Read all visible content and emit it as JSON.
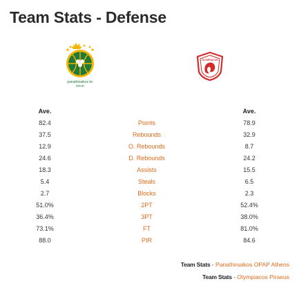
{
  "page": {
    "title": "Team Stats - Defense"
  },
  "teams": {
    "home": {
      "logo_text_1": "panathinaikos bc",
      "logo_text_2": "OPAP"
    },
    "away": {
      "logo_text": "OLYMPIACOS"
    }
  },
  "table": {
    "home_header": "Ave.",
    "away_header": "Ave.",
    "rows": [
      {
        "label": "Points",
        "home": "82.4",
        "away": "78.9"
      },
      {
        "label": "Rebounds",
        "home": "37.5",
        "away": "32.9"
      },
      {
        "label": "O. Rebounds",
        "home": "12.9",
        "away": "8.7"
      },
      {
        "label": "D. Rebounds",
        "home": "24.6",
        "away": "24.2"
      },
      {
        "label": "Assists",
        "home": "18.3",
        "away": "15.5"
      },
      {
        "label": "Steals",
        "home": "5.4",
        "away": "6.5"
      },
      {
        "label": "Blocks",
        "home": "2.7",
        "away": "2.3"
      },
      {
        "label": "2PT",
        "home": "51.0%",
        "away": "52.4%"
      },
      {
        "label": "3PT",
        "home": "36.4%",
        "away": "38.0%"
      },
      {
        "label": "FT",
        "home": "73.1%",
        "away": "81.0%"
      },
      {
        "label": "PIR",
        "home": "88.0",
        "away": "84.6"
      }
    ]
  },
  "footer": {
    "links": [
      {
        "prefix": "Team Stats",
        "sep": " - ",
        "team": "Panathinaikos OPAP Athens"
      },
      {
        "prefix": "Team Stats",
        "sep": " - ",
        "team": "Olympiacos Piraeus"
      }
    ]
  },
  "colors": {
    "accent": "#e06a1b",
    "home_green": "#1f7a3a",
    "home_gold": "#f4b400",
    "away_red": "#d52b2b"
  }
}
